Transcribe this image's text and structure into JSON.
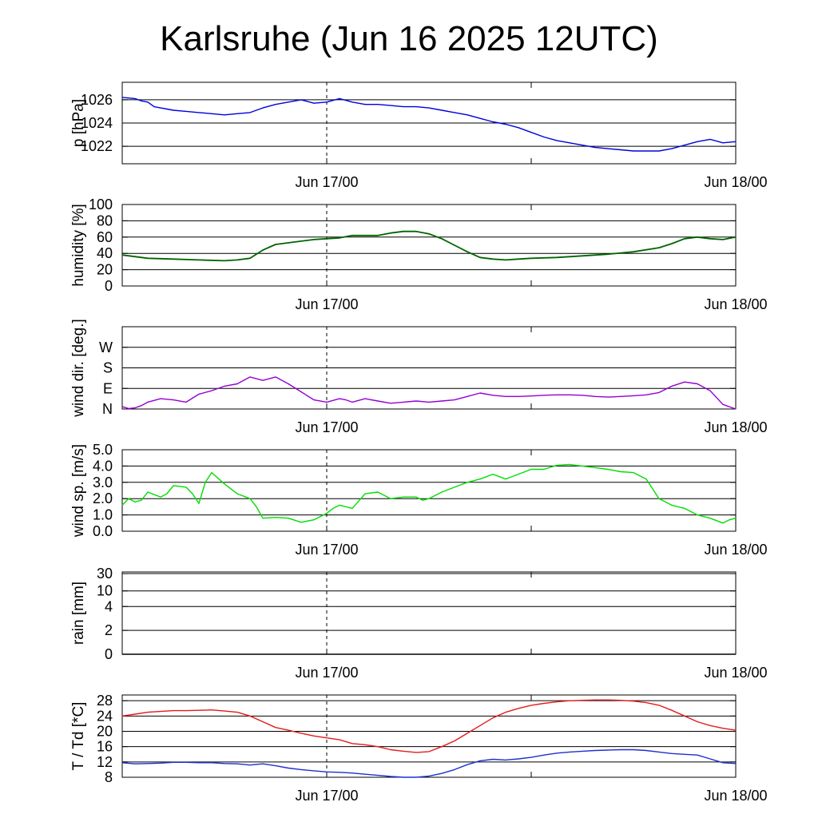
{
  "title": "Karlsruhe (Jun 16 2025 12UTC)",
  "x_ticks": [
    "Jun 17/00",
    "Jun 18/00"
  ],
  "colors": {
    "pressure": "#0000dd",
    "humidity": "#006400",
    "wind_dir": "#9400d3",
    "wind_speed": "#00dd00",
    "temperature": "#e41a1c",
    "dewpoint": "#1f2fd0",
    "grid": "#000000"
  },
  "chart_data": [
    {
      "type": "line",
      "ylabel": "p [hPa]",
      "ylim": [
        1020.5,
        1027.5
      ],
      "yticks": [
        1022,
        1024,
        1026
      ],
      "ytick_labels": [
        "1022",
        "1024",
        "1026"
      ],
      "x": [
        0,
        1,
        1.5,
        2,
        2.5,
        3,
        3.5,
        4,
        5,
        6,
        7,
        8,
        9,
        10,
        11,
        12,
        13,
        14,
        15,
        16,
        17,
        18,
        19,
        20,
        21,
        22,
        23,
        24,
        25,
        26,
        27,
        28,
        29,
        30,
        31,
        32,
        33,
        34,
        35,
        36,
        37,
        38,
        39,
        40,
        41,
        42,
        43,
        44,
        45,
        46,
        47,
        48
      ],
      "series": [
        {
          "values": [
            1026.2,
            1026.1,
            1025.9,
            1025.8,
            1025.4,
            1025.3,
            1025.2,
            1025.1,
            1025.0,
            1024.9,
            1024.8,
            1024.7,
            1024.8,
            1024.9,
            1025.3,
            1025.6,
            1025.8,
            1026.0,
            1025.7,
            1025.8,
            1026.1,
            1025.8,
            1025.6,
            1025.6,
            1025.5,
            1025.4,
            1025.4,
            1025.3,
            1025.1,
            1024.9,
            1024.7,
            1024.4,
            1024.1,
            1023.9,
            1023.6,
            1023.2,
            1022.8,
            1022.5,
            1022.3,
            1022.1,
            1021.9,
            1021.8,
            1021.7,
            1021.6,
            1021.6,
            1021.6,
            1021.8,
            1022.1,
            1022.4,
            1022.6,
            1022.3,
            1022.4
          ]
        }
      ]
    },
    {
      "type": "line",
      "ylabel": "humidity [%]",
      "ylim": [
        0,
        100
      ],
      "yticks": [
        0,
        20,
        40,
        60,
        80,
        100
      ],
      "ytick_labels": [
        "0",
        "20",
        "40",
        "60",
        "80",
        "100"
      ],
      "x": [
        0,
        2,
        4,
        6,
        8,
        9,
        10,
        11,
        12,
        14,
        15,
        16,
        17,
        18,
        20,
        21,
        22,
        23,
        24,
        25,
        26,
        27,
        28,
        29,
        30,
        31,
        32,
        34,
        36,
        38,
        40,
        42,
        43,
        44,
        45,
        46,
        47,
        48
      ],
      "series": [
        {
          "values": [
            38,
            34,
            33,
            32,
            31,
            32,
            34,
            44,
            51,
            55,
            57,
            58,
            59,
            62,
            62,
            65,
            67,
            67,
            64,
            58,
            50,
            42,
            35,
            33,
            32,
            33,
            34,
            35,
            37,
            39,
            42,
            47,
            52,
            58,
            60,
            58,
            57,
            60
          ]
        }
      ]
    },
    {
      "type": "line",
      "ylabel": "wind dir. [deg.]",
      "ylim": [
        0,
        360
      ],
      "yticks": [
        0,
        90,
        180,
        270
      ],
      "ytick_labels": [
        "N",
        "E",
        "S",
        "W"
      ],
      "x": [
        0,
        0.5,
        1,
        1.5,
        2,
        3,
        4,
        5,
        6,
        7,
        8,
        9,
        10,
        11,
        12,
        13,
        14,
        15,
        16,
        17,
        17.5,
        18,
        19,
        20,
        21,
        22,
        23,
        24,
        25,
        26,
        27,
        28,
        29,
        30,
        31,
        32,
        33,
        34,
        35,
        36,
        37,
        38,
        39,
        40,
        41,
        42,
        43,
        44,
        45,
        46,
        47,
        48
      ],
      "series": [
        {
          "values": [
            10,
            2,
            5,
            15,
            30,
            45,
            40,
            30,
            65,
            80,
            100,
            110,
            140,
            125,
            140,
            110,
            75,
            40,
            30,
            45,
            40,
            30,
            45,
            35,
            25,
            30,
            35,
            30,
            35,
            40,
            55,
            70,
            60,
            55,
            55,
            57,
            60,
            62,
            62,
            60,
            55,
            52,
            55,
            58,
            62,
            72,
            100,
            118,
            110,
            80,
            20,
            0
          ]
        }
      ]
    },
    {
      "type": "line",
      "ylabel": "wind sp. [m/s]",
      "ylim": [
        0,
        5
      ],
      "yticks": [
        0,
        1,
        2,
        3,
        4,
        5
      ],
      "ytick_labels": [
        "0.0",
        "1.0",
        "2.0",
        "3.0",
        "4.0",
        "5.0"
      ],
      "x": [
        0,
        0.5,
        1,
        1.5,
        2,
        3,
        3.5,
        4,
        5,
        5.5,
        6,
        6.5,
        7,
        8,
        9,
        10,
        10.5,
        11,
        12,
        13,
        14,
        15,
        16,
        16.5,
        17,
        18,
        19,
        20,
        21,
        22,
        23,
        23.5,
        24,
        25,
        26,
        27,
        28,
        29,
        30,
        31,
        32,
        33,
        34,
        35,
        36,
        37,
        38,
        39,
        40,
        41,
        42,
        43,
        44,
        45,
        46,
        47,
        47.5,
        48
      ],
      "series": [
        {
          "values": [
            1.6,
            2.0,
            1.8,
            1.9,
            2.4,
            2.1,
            2.3,
            2.8,
            2.7,
            2.3,
            1.7,
            3.0,
            3.6,
            2.9,
            2.3,
            2.0,
            1.5,
            0.8,
            0.85,
            0.8,
            0.55,
            0.7,
            1.1,
            1.4,
            1.6,
            1.4,
            2.3,
            2.4,
            2.0,
            2.1,
            2.1,
            1.9,
            2.0,
            2.4,
            2.7,
            3.0,
            3.2,
            3.5,
            3.2,
            3.5,
            3.8,
            3.8,
            4.05,
            4.1,
            4.0,
            3.9,
            3.8,
            3.65,
            3.6,
            3.2,
            2.0,
            1.6,
            1.4,
            1.0,
            0.8,
            0.5,
            0.7,
            0.8
          ]
        }
      ]
    },
    {
      "type": "line",
      "ylabel": "rain [mm]",
      "yscale": "nonlinear",
      "yticks": [
        0,
        2,
        4,
        10,
        30
      ],
      "ytick_labels": [
        "0",
        "2",
        "4",
        "10",
        "30"
      ],
      "x": [
        0,
        48
      ],
      "series": [
        {
          "values": [
            0,
            0
          ]
        }
      ]
    },
    {
      "type": "line",
      "ylabel": "T / Td [*C]",
      "ylim": [
        8,
        29.5
      ],
      "yticks": [
        8,
        12,
        16,
        20,
        24,
        28
      ],
      "ytick_labels": [
        "8",
        "12",
        "16",
        "20",
        "24",
        "28"
      ],
      "x": [
        0,
        1,
        2,
        3,
        4,
        5,
        6,
        7,
        8,
        9,
        10,
        11,
        12,
        13,
        14,
        15,
        16,
        17,
        18,
        19,
        20,
        21,
        22,
        23,
        24,
        25,
        26,
        27,
        28,
        29,
        30,
        31,
        32,
        33,
        34,
        35,
        36,
        37,
        38,
        39,
        40,
        41,
        42,
        43,
        44,
        45,
        46,
        47,
        48
      ],
      "series": [
        {
          "values": [
            24.0,
            24.5,
            25.0,
            25.2,
            25.4,
            25.4,
            25.5,
            25.6,
            25.3,
            25.0,
            24.0,
            22.5,
            21.0,
            20.3,
            19.5,
            18.8,
            18.3,
            17.8,
            16.8,
            16.5,
            16.0,
            15.2,
            14.8,
            14.5,
            14.7,
            16.0,
            17.5,
            19.5,
            21.5,
            23.5,
            25.0,
            26.0,
            26.8,
            27.3,
            27.7,
            28.0,
            28.1,
            28.2,
            28.2,
            28.1,
            27.9,
            27.5,
            26.8,
            25.5,
            24.0,
            22.5,
            21.5,
            20.8,
            20.3
          ]
        },
        {
          "values": [
            11.8,
            11.5,
            11.6,
            11.7,
            11.9,
            11.9,
            11.8,
            11.8,
            11.6,
            11.5,
            11.2,
            11.5,
            11.0,
            10.4,
            10.0,
            9.7,
            9.4,
            9.3,
            9.1,
            8.8,
            8.5,
            8.2,
            8.0,
            8.0,
            8.3,
            9.0,
            10.0,
            11.3,
            12.3,
            12.7,
            12.5,
            12.8,
            13.2,
            13.8,
            14.3,
            14.6,
            14.8,
            15.0,
            15.1,
            15.2,
            15.2,
            15.0,
            14.6,
            14.2,
            14.0,
            13.8,
            12.8,
            11.8,
            11.6
          ]
        }
      ]
    }
  ]
}
